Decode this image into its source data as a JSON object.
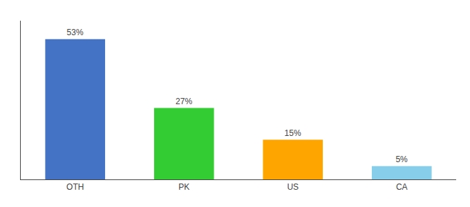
{
  "chart_data": {
    "type": "bar",
    "categories": [
      "OTH",
      "PK",
      "US",
      "CA"
    ],
    "values": [
      53,
      27,
      15,
      5
    ],
    "value_labels": [
      "53%",
      "27%",
      "15%",
      "5%"
    ],
    "data_labels": true,
    "colors": [
      "#4472C4",
      "#33CC33",
      "#FFA500",
      "#87CEEB"
    ],
    "ylim": [
      0,
      60
    ],
    "grid": false,
    "tick_labels": "x"
  }
}
